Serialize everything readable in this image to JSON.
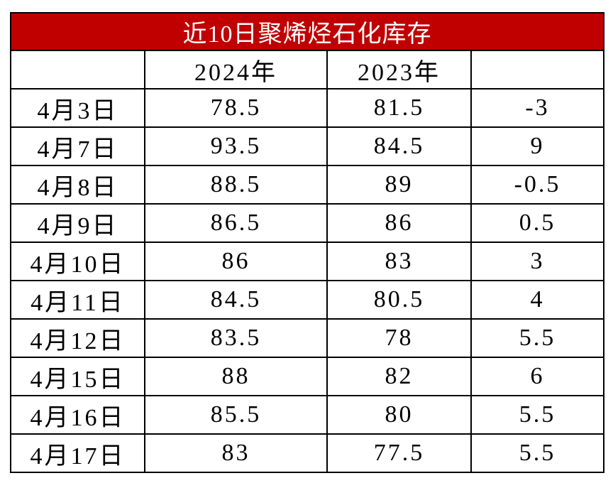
{
  "title": "近10日聚烯烃石化库存",
  "table": {
    "columns": [
      "2024年",
      "2023年"
    ],
    "rows": [
      [
        "4月3日",
        78.5,
        81.5,
        -3
      ],
      [
        "4月7日",
        93.5,
        84.5,
        9
      ],
      [
        "4月8日",
        88.5,
        89,
        -0.5
      ],
      [
        "4月9日",
        86.5,
        86,
        0.5
      ],
      [
        "4月10日",
        86,
        83,
        3
      ],
      [
        "4月11日",
        84.5,
        80.5,
        4
      ],
      [
        "4月12日",
        83.5,
        78,
        5.5
      ],
      [
        "4月15日",
        88,
        82,
        6
      ],
      [
        "4月16日",
        85.5,
        80,
        5.5
      ],
      [
        "4月17日",
        83,
        77.5,
        5.5
      ]
    ]
  }
}
